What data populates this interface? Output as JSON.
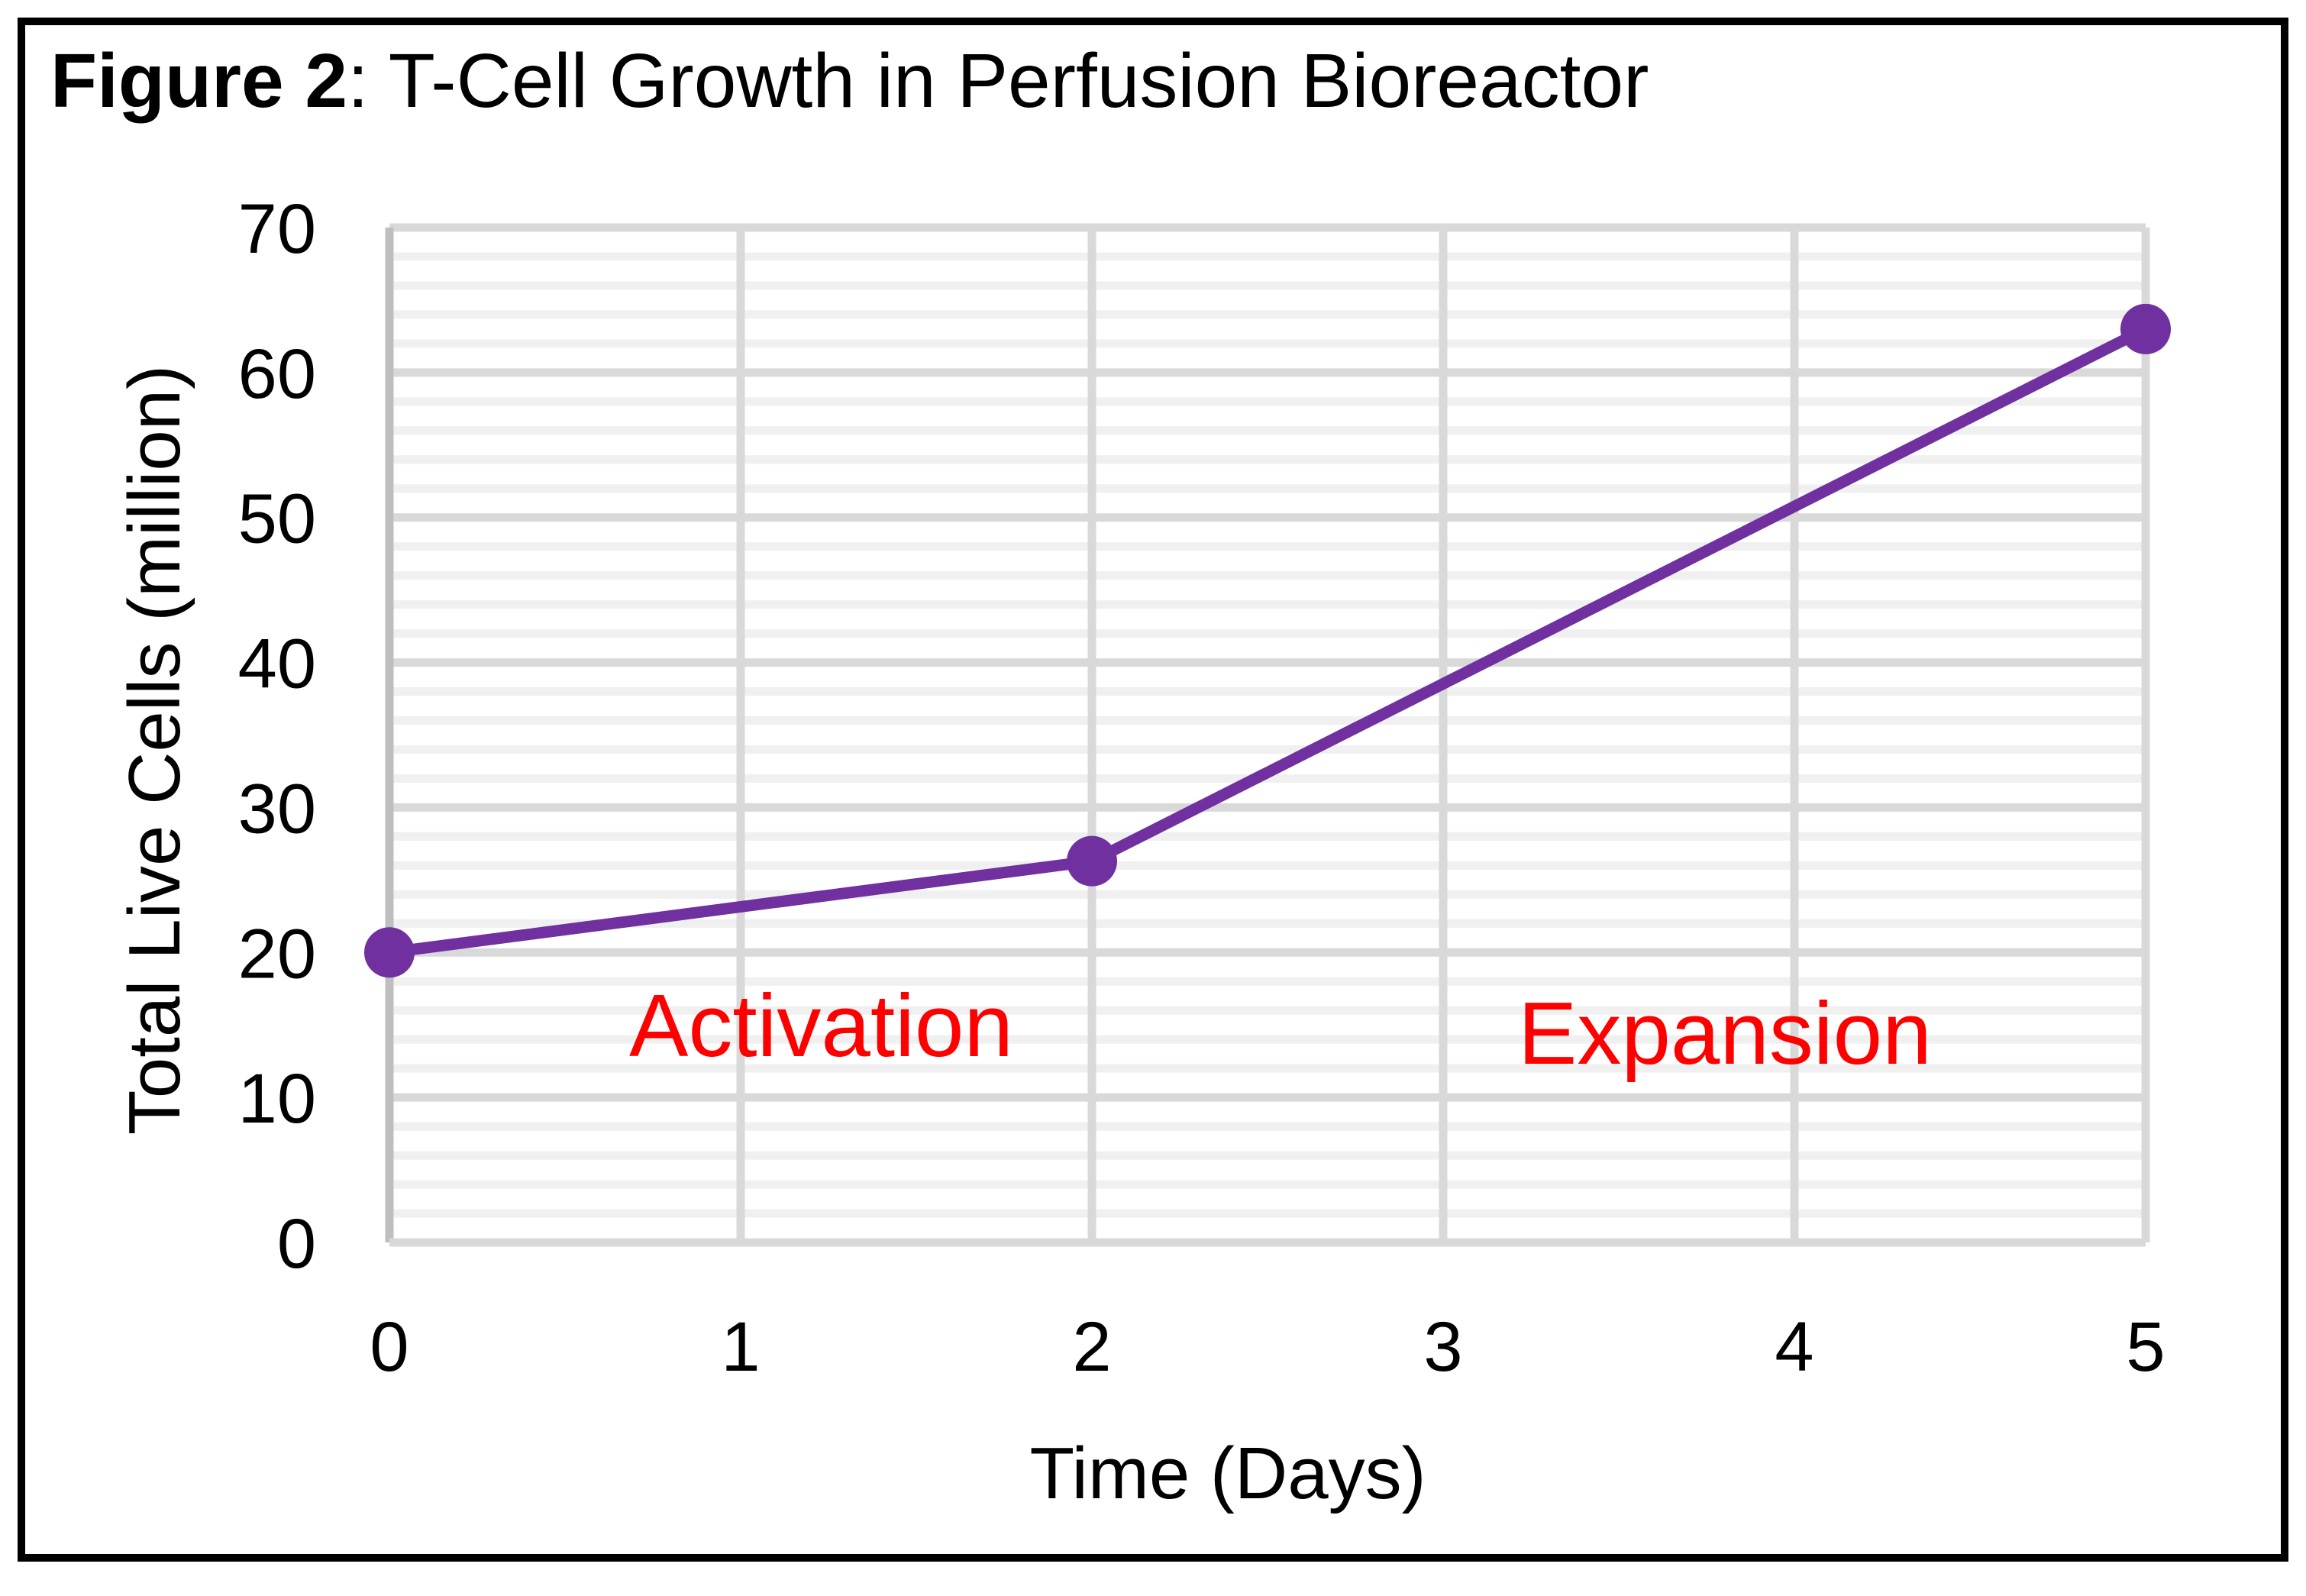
{
  "figure_label": "Figure 2",
  "figure_title": ": T-Cell Growth in Perfusion Bioreactor",
  "chart_data": {
    "type": "line",
    "title": "Figure 2: T-Cell Growth in Perfusion Bioreactor",
    "xlabel": "Time (Days)",
    "ylabel": "Total Live Cells (million)",
    "x": [
      0,
      2,
      5
    ],
    "series": [
      {
        "values": [
          20,
          26.3,
          63
        ]
      }
    ],
    "xlim": [
      0,
      5
    ],
    "ylim": [
      0,
      70
    ],
    "x_ticks": [
      "0",
      "1",
      "2",
      "3",
      "4",
      "5"
    ],
    "y_ticks": [
      "0",
      "10",
      "20",
      "30",
      "40",
      "50",
      "60",
      "70"
    ],
    "y_minor_step": 2,
    "grid": true,
    "annotations": [
      {
        "text": "Activation",
        "color": "#FF0000"
      },
      {
        "text": "Expansion",
        "color": "#FF0000"
      }
    ],
    "line_color": "#7030A0"
  }
}
